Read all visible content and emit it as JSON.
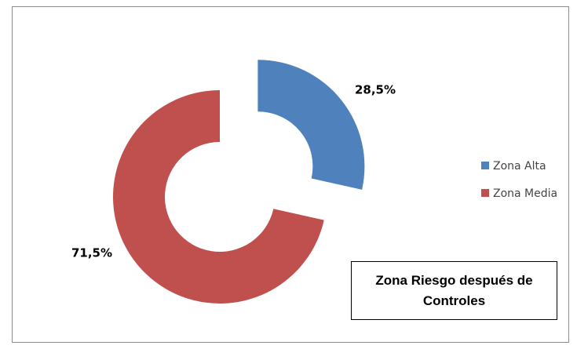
{
  "chart_data": {
    "type": "donut",
    "title": "Zona Riesgo después de Controles",
    "categories": [
      "Zona Alta",
      "Zona Media"
    ],
    "values": [
      28.5,
      71.5
    ],
    "value_labels": [
      "28,5%",
      "71,5%"
    ],
    "colors": [
      "#4f81bd",
      "#c0504d"
    ],
    "legend": "right"
  }
}
